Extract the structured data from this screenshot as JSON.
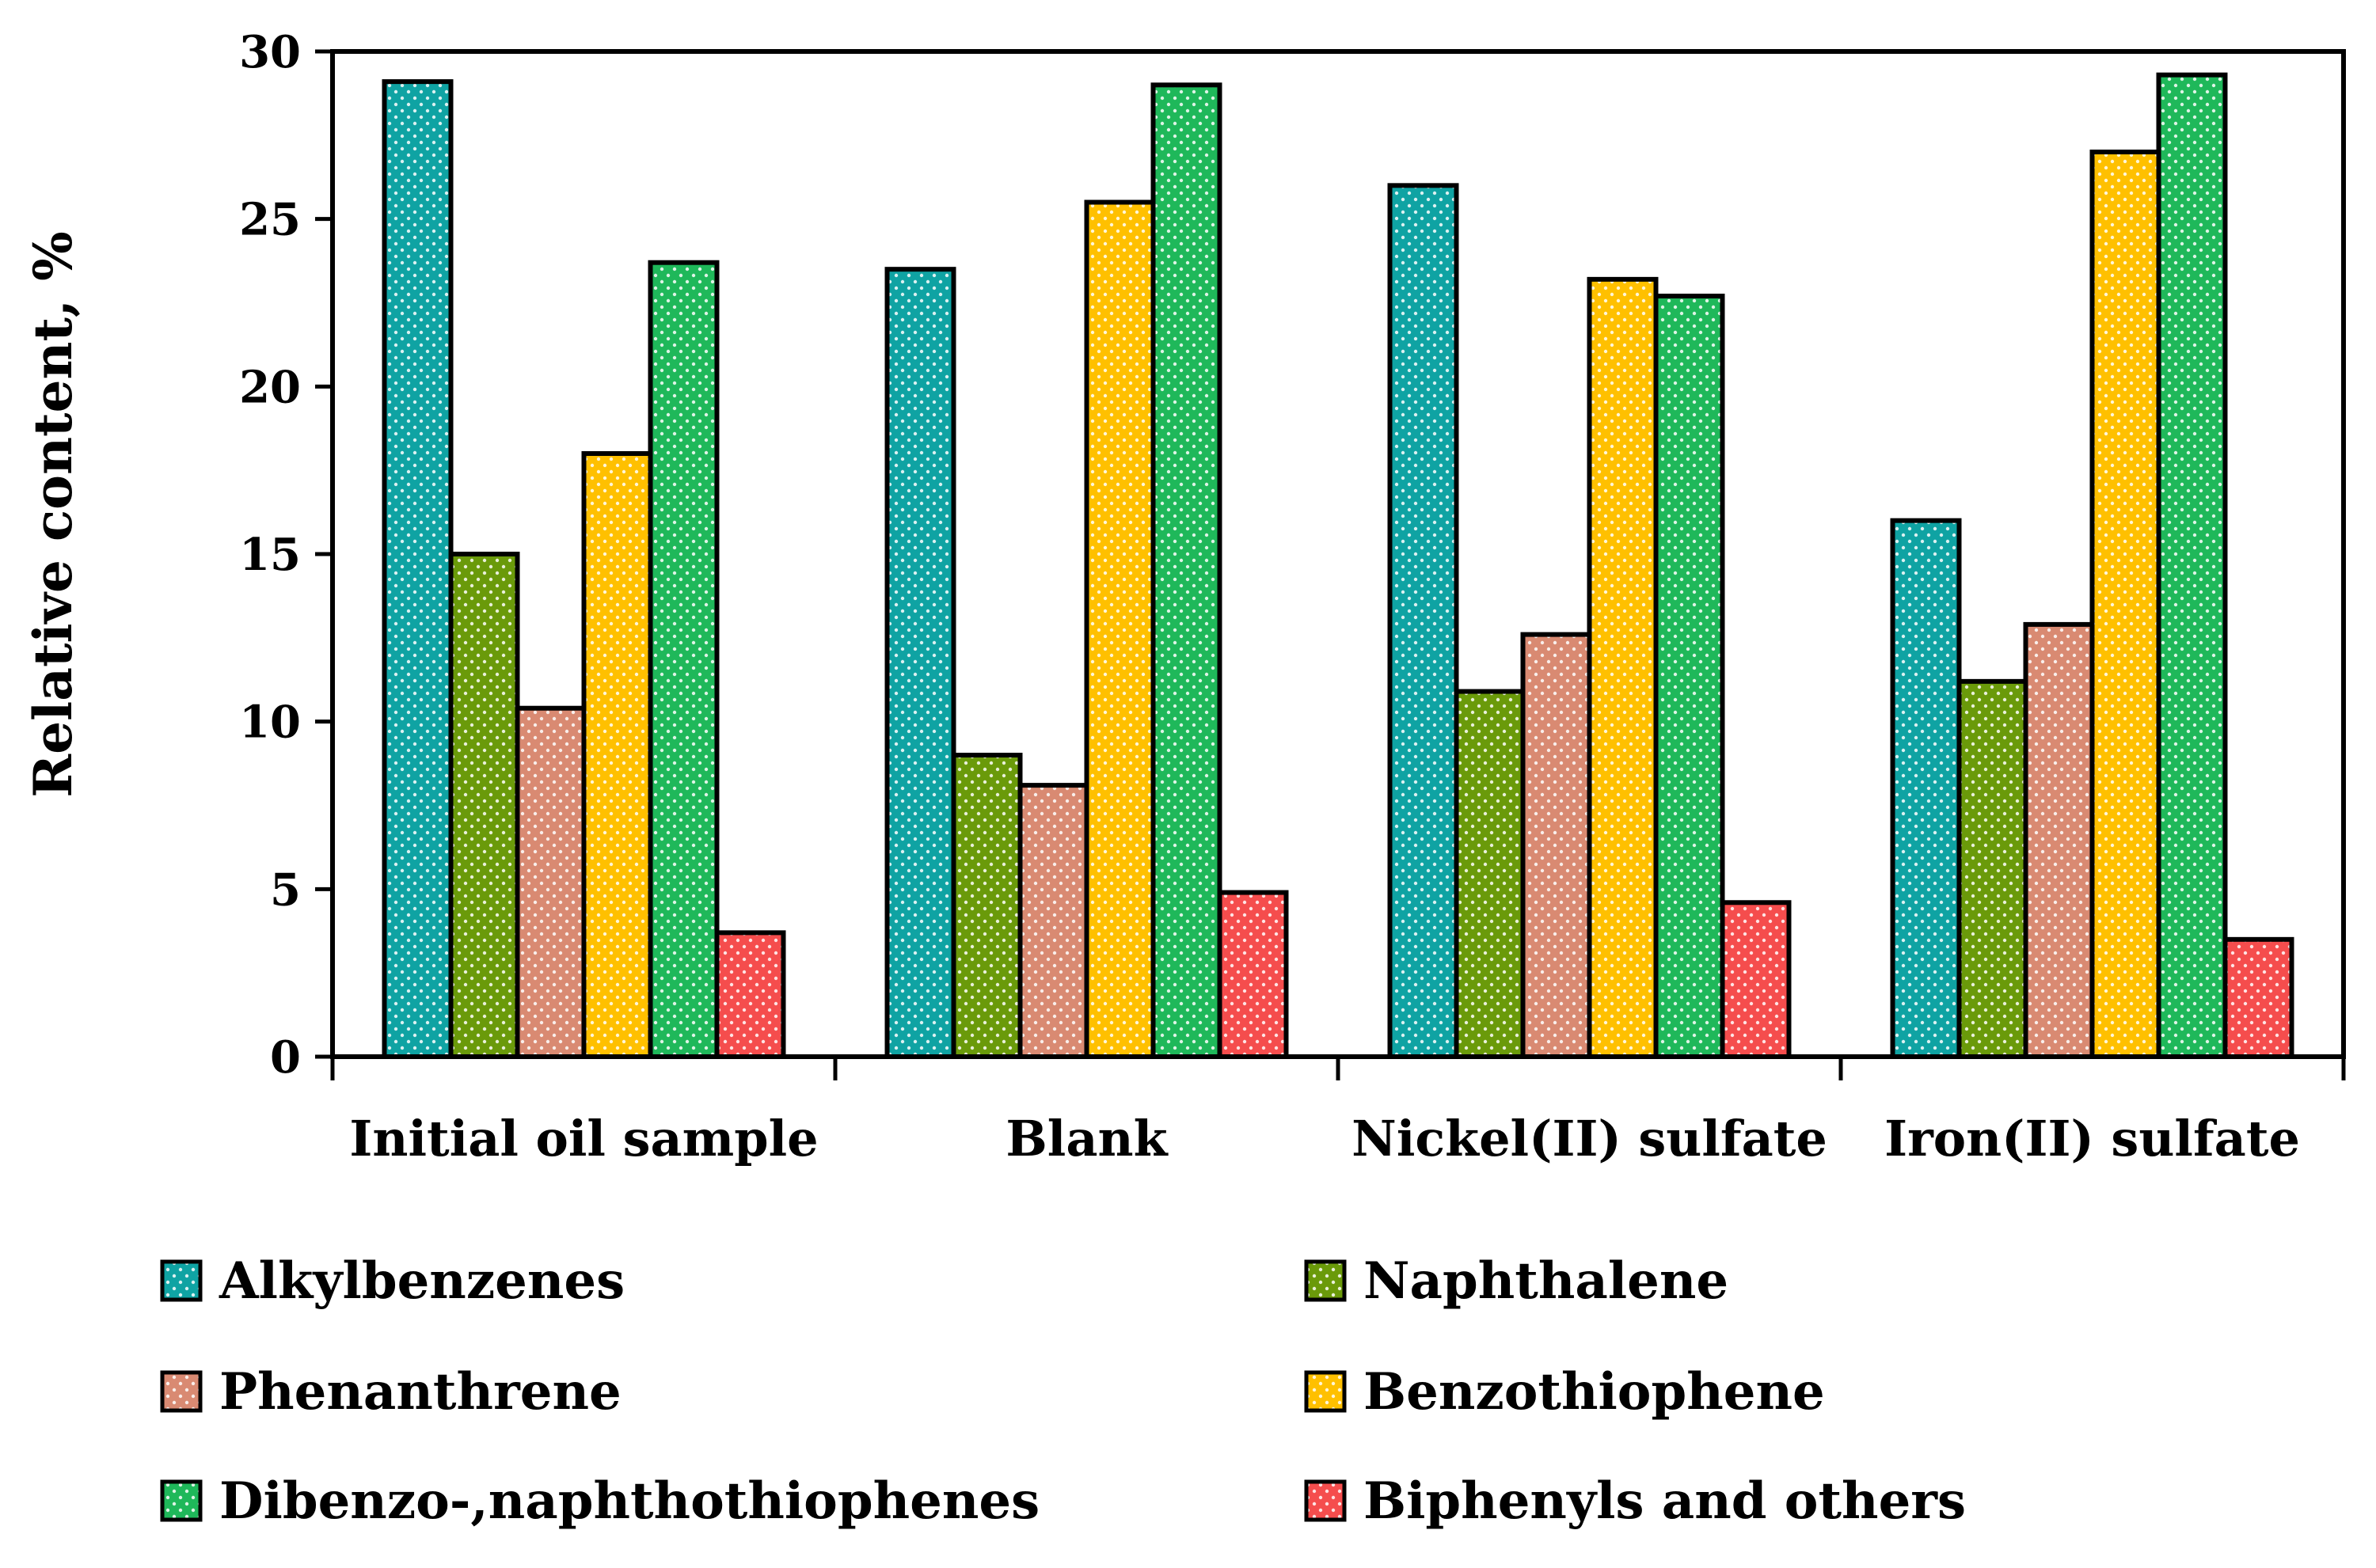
{
  "chart_data": {
    "type": "bar",
    "title": "",
    "xlabel": "",
    "ylabel": "Relative content, %",
    "ylim": [
      0,
      30
    ],
    "yticks": [
      0,
      5,
      10,
      15,
      20,
      25,
      30
    ],
    "grid": false,
    "legend_position": "bottom",
    "categories": [
      "Initial oil sample",
      "Blank",
      "Nickel(II) sulfate",
      "Iron(II) sulfate"
    ],
    "series": [
      {
        "name": "Alkylbenzenes",
        "color": "#0fa3a3",
        "values": [
          29.1,
          23.5,
          26.0,
          16.0
        ]
      },
      {
        "name": "Naphthalene",
        "color": "#6a9a0a",
        "values": [
          15.0,
          9.0,
          10.9,
          11.2
        ]
      },
      {
        "name": "Phenanthrene",
        "color": "#d98a72",
        "values": [
          10.4,
          8.1,
          12.6,
          12.9
        ]
      },
      {
        "name": "Benzothiophene",
        "color": "#ffc000",
        "values": [
          18.0,
          25.5,
          23.2,
          27.0
        ]
      },
      {
        "name": "Dibenzo-,naphthothiophenes",
        "color": "#1fb85a",
        "values": [
          23.7,
          29.0,
          22.7,
          29.3
        ]
      },
      {
        "name": "Biphenyls and others",
        "color": "#f54d4d",
        "values": [
          3.7,
          4.9,
          4.6,
          3.5
        ]
      }
    ]
  }
}
